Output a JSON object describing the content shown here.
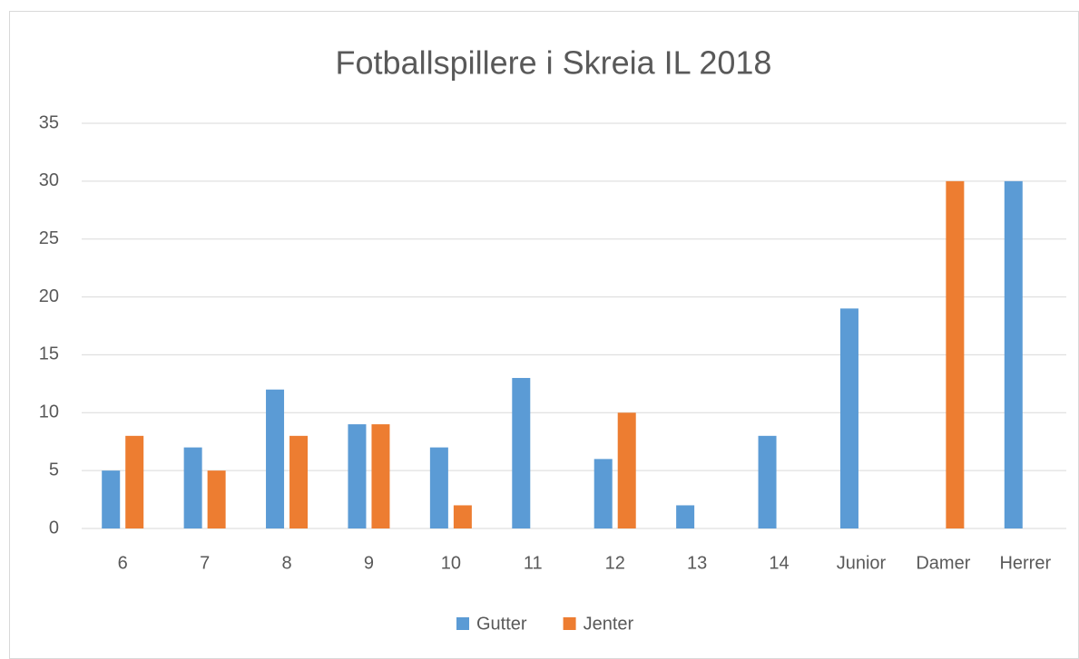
{
  "chart_data": {
    "type": "bar",
    "title": "Fotballspillere i Skreia IL 2018",
    "categories": [
      "6",
      "7",
      "8",
      "9",
      "10",
      "11",
      "12",
      "13",
      "14",
      "Junior",
      "Damer",
      "Herrer"
    ],
    "series": [
      {
        "name": "Gutter",
        "color": "#5b9bd5",
        "values": [
          5,
          7,
          12,
          9,
          7,
          13,
          6,
          2,
          8,
          19,
          null,
          30
        ]
      },
      {
        "name": "Jenter",
        "color": "#ed7d31",
        "values": [
          8,
          5,
          8,
          9,
          2,
          null,
          10,
          null,
          null,
          null,
          30,
          null
        ]
      }
    ],
    "ylim": [
      0,
      35
    ],
    "yticks": [
      0,
      5,
      10,
      15,
      20,
      25,
      30,
      35
    ],
    "grid": true,
    "legend": "bottom"
  }
}
